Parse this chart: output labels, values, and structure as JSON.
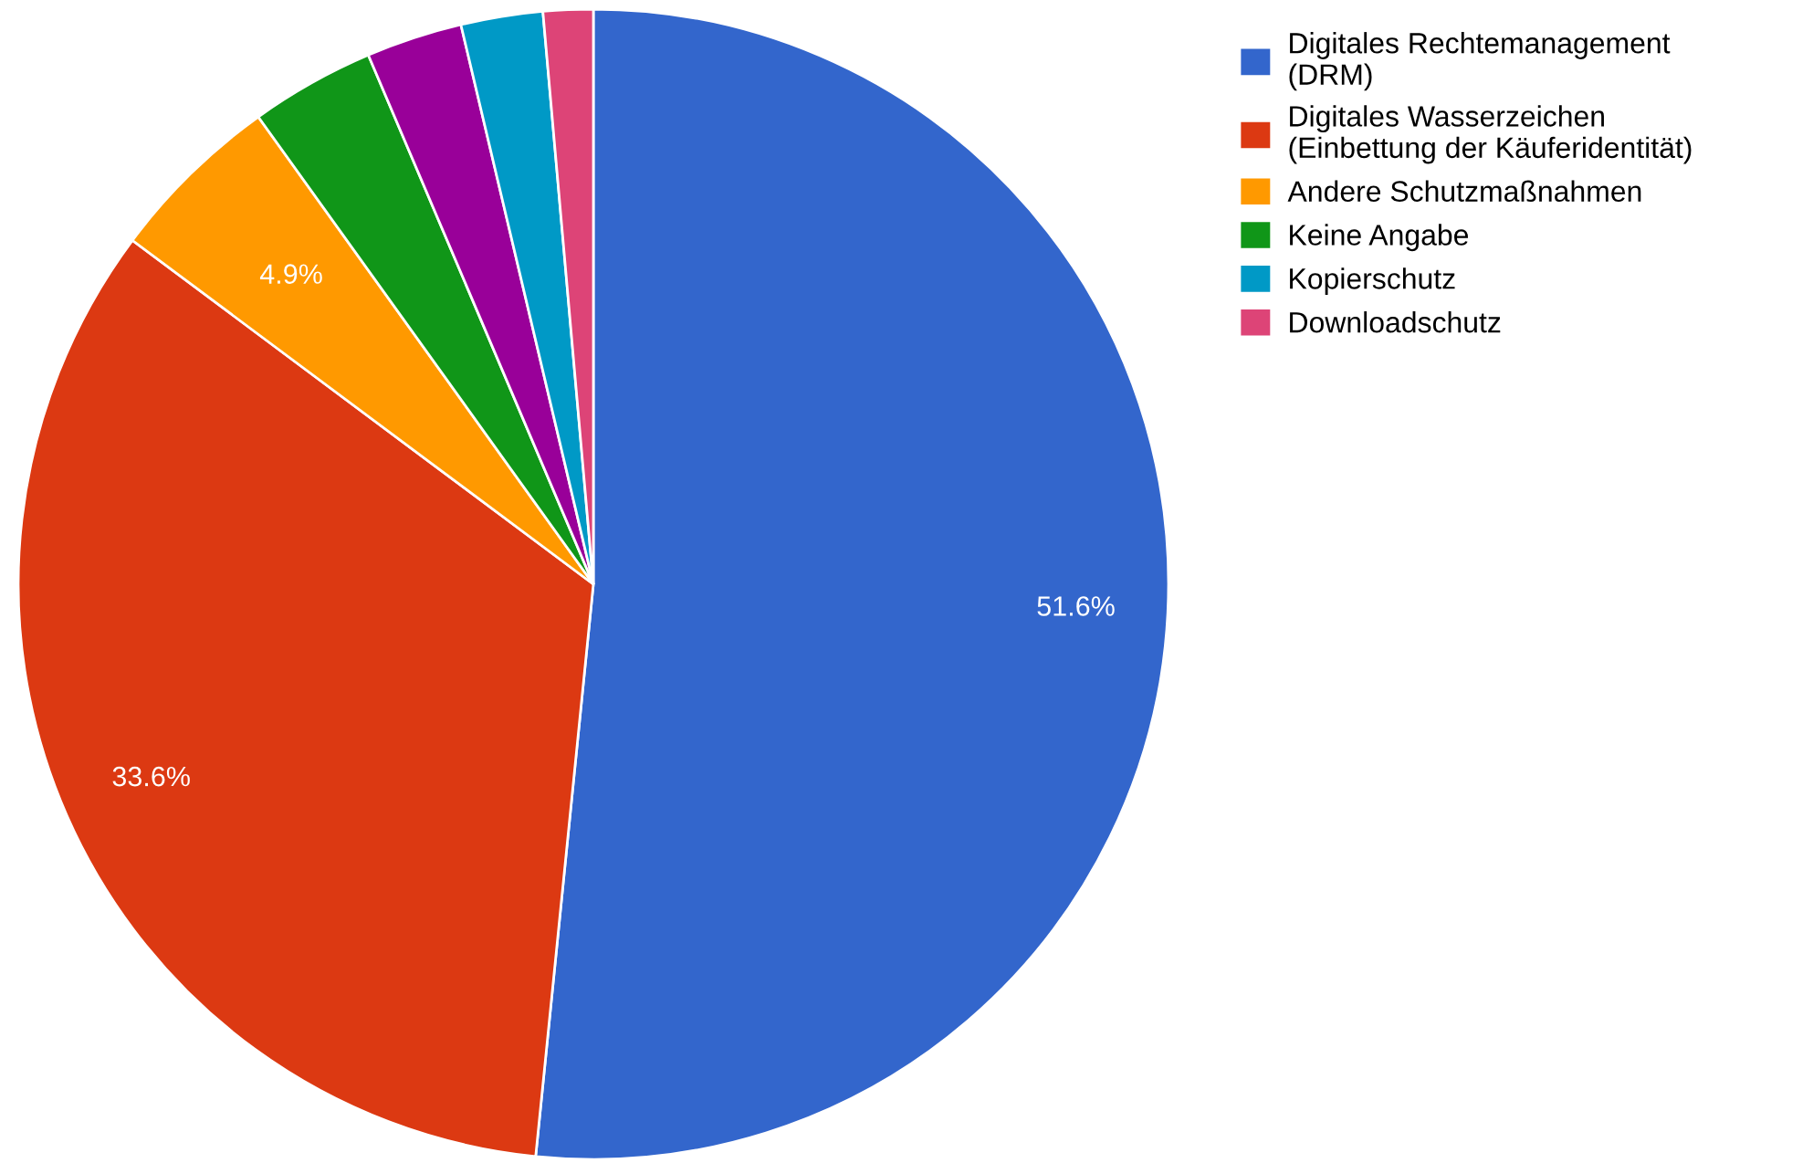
{
  "chart_data": {
    "type": "pie",
    "categories": [
      "Digitales Rechtemanagement (DRM)",
      "Digitales Wasserzeichen (Einbettung der Käuferidentität)",
      "Andere Schutzmaßnahmen",
      "Keine Angabe",
      null,
      "Kopierschutz",
      "Downloadschutz"
    ],
    "values": [
      51.6,
      33.6,
      4.9,
      3.5,
      2.7,
      2.3,
      1.4
    ],
    "colors": [
      "#3366cc",
      "#dc3912",
      "#ff9900",
      "#109618",
      "#990099",
      "#0099c6",
      "#dd4477"
    ],
    "value_labels": [
      "51.6%",
      "33.6%",
      "4.9%",
      null,
      null,
      null,
      null
    ],
    "legend": "top right"
  }
}
